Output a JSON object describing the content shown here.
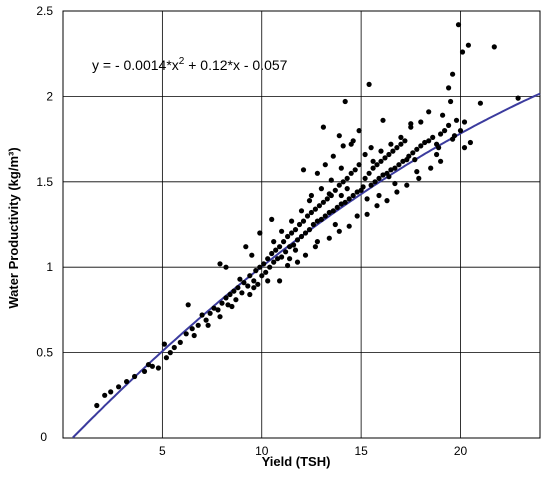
{
  "chart_data": {
    "type": "scatter",
    "title": "",
    "xlabel": "Yield (TSH)",
    "ylabel": "Water Productivity (kg/m³)",
    "xlim": [
      0,
      24
    ],
    "ylim": [
      0,
      2.5
    ],
    "xticks": [
      "0",
      "5",
      "10",
      "15",
      "20"
    ],
    "yticks": [
      "0.5",
      "1",
      "1.5",
      "2",
      "2.5"
    ],
    "origin_label": "0",
    "grid": true,
    "equation": "y = - 0.0014*x² + 0.12*x - 0.057",
    "fit": {
      "type": "quadratic",
      "a": -0.0014,
      "b": 0.12,
      "c": -0.057,
      "color": "#3b3b9e"
    },
    "point_color": "#000000",
    "points": [
      [
        1.7,
        0.19
      ],
      [
        2.1,
        0.25
      ],
      [
        2.4,
        0.27
      ],
      [
        2.8,
        0.3
      ],
      [
        3.2,
        0.33
      ],
      [
        3.6,
        0.36
      ],
      [
        4.1,
        0.39
      ],
      [
        4.5,
        0.42
      ],
      [
        4.8,
        0.41
      ],
      [
        5.2,
        0.47
      ],
      [
        5.4,
        0.5
      ],
      [
        5.6,
        0.53
      ],
      [
        5.9,
        0.56
      ],
      [
        6.2,
        0.61
      ],
      [
        6.5,
        0.64
      ],
      [
        6.8,
        0.66
      ],
      [
        7.0,
        0.72
      ],
      [
        7.2,
        0.69
      ],
      [
        7.4,
        0.73
      ],
      [
        7.6,
        0.76
      ],
      [
        7.8,
        0.75
      ],
      [
        8.0,
        0.79
      ],
      [
        8.2,
        0.82
      ],
      [
        8.3,
        0.78
      ],
      [
        8.4,
        0.84
      ],
      [
        8.6,
        0.86
      ],
      [
        8.8,
        0.88
      ],
      [
        9.0,
        0.85
      ],
      [
        9.1,
        0.91
      ],
      [
        9.3,
        0.89
      ],
      [
        9.4,
        0.95
      ],
      [
        9.6,
        0.92
      ],
      [
        9.7,
        0.98
      ],
      [
        9.8,
        0.9
      ],
      [
        9.9,
        1.0
      ],
      [
        10.0,
        0.95
      ],
      [
        10.1,
        1.02
      ],
      [
        10.2,
        0.97
      ],
      [
        10.3,
        1.05
      ],
      [
        10.4,
        1.0
      ],
      [
        10.5,
        1.08
      ],
      [
        10.6,
        1.03
      ],
      [
        10.7,
        1.1
      ],
      [
        10.8,
        1.05
      ],
      [
        10.9,
        1.12
      ],
      [
        11.0,
        1.06
      ],
      [
        11.1,
        1.15
      ],
      [
        11.2,
        1.09
      ],
      [
        11.3,
        1.18
      ],
      [
        11.4,
        1.12
      ],
      [
        11.5,
        1.2
      ],
      [
        11.6,
        1.13
      ],
      [
        11.7,
        1.22
      ],
      [
        11.8,
        1.16
      ],
      [
        11.9,
        1.25
      ],
      [
        12.0,
        1.18
      ],
      [
        12.1,
        1.27
      ],
      [
        12.2,
        1.2
      ],
      [
        12.3,
        1.3
      ],
      [
        12.4,
        1.22
      ],
      [
        12.5,
        1.32
      ],
      [
        12.6,
        1.25
      ],
      [
        12.7,
        1.34
      ],
      [
        12.8,
        1.27
      ],
      [
        12.9,
        1.36
      ],
      [
        13.0,
        1.28
      ],
      [
        13.1,
        1.38
      ],
      [
        13.2,
        1.3
      ],
      [
        13.3,
        1.4
      ],
      [
        13.4,
        1.32
      ],
      [
        13.5,
        1.42
      ],
      [
        13.6,
        1.33
      ],
      [
        13.7,
        1.45
      ],
      [
        13.8,
        1.35
      ],
      [
        13.9,
        1.48
      ],
      [
        14.0,
        1.37
      ],
      [
        14.1,
        1.5
      ],
      [
        14.2,
        1.38
      ],
      [
        14.3,
        1.52
      ],
      [
        14.4,
        1.4
      ],
      [
        14.5,
        1.55
      ],
      [
        14.6,
        1.42
      ],
      [
        14.7,
        1.57
      ],
      [
        14.8,
        1.44
      ],
      [
        14.9,
        1.6
      ],
      [
        15.0,
        1.45
      ],
      [
        15.1,
        1.47
      ],
      [
        15.2,
        1.52
      ],
      [
        15.3,
        1.4
      ],
      [
        15.4,
        1.55
      ],
      [
        15.5,
        1.48
      ],
      [
        15.6,
        1.58
      ],
      [
        15.7,
        1.5
      ],
      [
        15.8,
        1.6
      ],
      [
        15.9,
        1.52
      ],
      [
        16.0,
        1.62
      ],
      [
        16.1,
        1.54
      ],
      [
        16.2,
        1.64
      ],
      [
        16.3,
        1.55
      ],
      [
        16.4,
        1.66
      ],
      [
        16.5,
        1.57
      ],
      [
        16.6,
        1.68
      ],
      [
        16.7,
        1.58
      ],
      [
        16.8,
        1.7
      ],
      [
        16.9,
        1.6
      ],
      [
        17.0,
        1.72
      ],
      [
        17.1,
        1.62
      ],
      [
        17.2,
        1.74
      ],
      [
        17.3,
        1.63
      ],
      [
        17.4,
        1.65
      ],
      [
        17.6,
        1.67
      ],
      [
        17.8,
        1.69
      ],
      [
        18.0,
        1.71
      ],
      [
        18.2,
        1.73
      ],
      [
        18.4,
        1.74
      ],
      [
        18.6,
        1.76
      ],
      [
        18.8,
        1.72
      ],
      [
        19.0,
        1.78
      ],
      [
        19.2,
        1.8
      ],
      [
        19.4,
        1.83
      ],
      [
        19.6,
        1.75
      ],
      [
        19.8,
        1.86
      ],
      [
        20.0,
        1.8
      ],
      [
        20.2,
        1.85
      ],
      [
        8.9,
        0.93
      ],
      [
        9.5,
        1.07
      ],
      [
        10.6,
        1.15
      ],
      [
        11.0,
        1.21
      ],
      [
        11.5,
        1.27
      ],
      [
        12.0,
        1.33
      ],
      [
        12.5,
        1.42
      ],
      [
        13.0,
        1.46
      ],
      [
        13.5,
        1.51
      ],
      [
        14.0,
        1.58
      ],
      [
        12.8,
        1.55
      ],
      [
        13.2,
        1.6
      ],
      [
        13.6,
        1.65
      ],
      [
        14.1,
        1.71
      ],
      [
        14.6,
        1.74
      ],
      [
        15.2,
        1.66
      ],
      [
        15.6,
        1.62
      ],
      [
        16.0,
        1.68
      ],
      [
        16.5,
        1.72
      ],
      [
        17.0,
        1.76
      ],
      [
        17.5,
        1.82
      ],
      [
        18.0,
        1.85
      ],
      [
        18.4,
        1.91
      ],
      [
        19.1,
        1.89
      ],
      [
        19.5,
        1.97
      ],
      [
        13.4,
        1.43
      ],
      [
        14.3,
        1.46
      ],
      [
        11.3,
        1.01
      ],
      [
        12.2,
        1.07
      ],
      [
        12.7,
        1.12
      ],
      [
        13.4,
        1.17
      ],
      [
        13.9,
        1.21
      ],
      [
        14.4,
        1.24
      ],
      [
        15.3,
        1.31
      ],
      [
        15.8,
        1.36
      ],
      [
        16.3,
        1.39
      ],
      [
        16.8,
        1.44
      ],
      [
        17.3,
        1.48
      ],
      [
        17.9,
        1.52
      ],
      [
        18.5,
        1.58
      ],
      [
        19.0,
        1.62
      ],
      [
        10.9,
        0.92
      ],
      [
        11.8,
        1.03
      ],
      [
        9.4,
        0.84
      ],
      [
        8.5,
        0.77
      ],
      [
        7.9,
        0.71
      ],
      [
        7.3,
        0.66
      ],
      [
        6.6,
        0.6
      ],
      [
        14.2,
        1.97
      ],
      [
        15.4,
        2.07
      ],
      [
        19.9,
        2.42
      ],
      [
        20.1,
        2.26
      ],
      [
        20.4,
        2.3
      ],
      [
        21.7,
        2.29
      ],
      [
        19.6,
        2.13
      ],
      [
        19.4,
        2.05
      ],
      [
        21.0,
        1.96
      ],
      [
        22.9,
        1.99
      ],
      [
        20.5,
        1.73
      ],
      [
        20.2,
        1.7
      ],
      [
        17.5,
        1.84
      ],
      [
        14.5,
        1.72
      ],
      [
        13.1,
        1.82
      ],
      [
        12.1,
        1.57
      ],
      [
        10.5,
        1.28
      ],
      [
        9.9,
        1.2
      ],
      [
        9.2,
        1.12
      ],
      [
        7.9,
        1.02
      ],
      [
        8.2,
        1.0
      ],
      [
        6.3,
        0.78
      ],
      [
        5.1,
        0.55
      ],
      [
        4.3,
        0.43
      ],
      [
        11.4,
        1.05
      ],
      [
        12.8,
        1.15
      ],
      [
        13.7,
        1.25
      ],
      [
        14.8,
        1.3
      ],
      [
        15.9,
        1.42
      ],
      [
        16.7,
        1.49
      ],
      [
        17.8,
        1.56
      ],
      [
        18.8,
        1.66
      ],
      [
        13.9,
        1.77
      ],
      [
        14.9,
        1.8
      ],
      [
        16.1,
        1.86
      ],
      [
        15.5,
        1.7
      ],
      [
        14.0,
        1.42
      ],
      [
        12.4,
        1.39
      ],
      [
        11.7,
        1.1
      ],
      [
        10.3,
        0.92
      ],
      [
        9.6,
        0.88
      ],
      [
        8.7,
        0.81
      ],
      [
        16.4,
        1.53
      ],
      [
        17.7,
        1.63
      ],
      [
        18.9,
        1.7
      ],
      [
        19.7,
        1.77
      ]
    ]
  }
}
